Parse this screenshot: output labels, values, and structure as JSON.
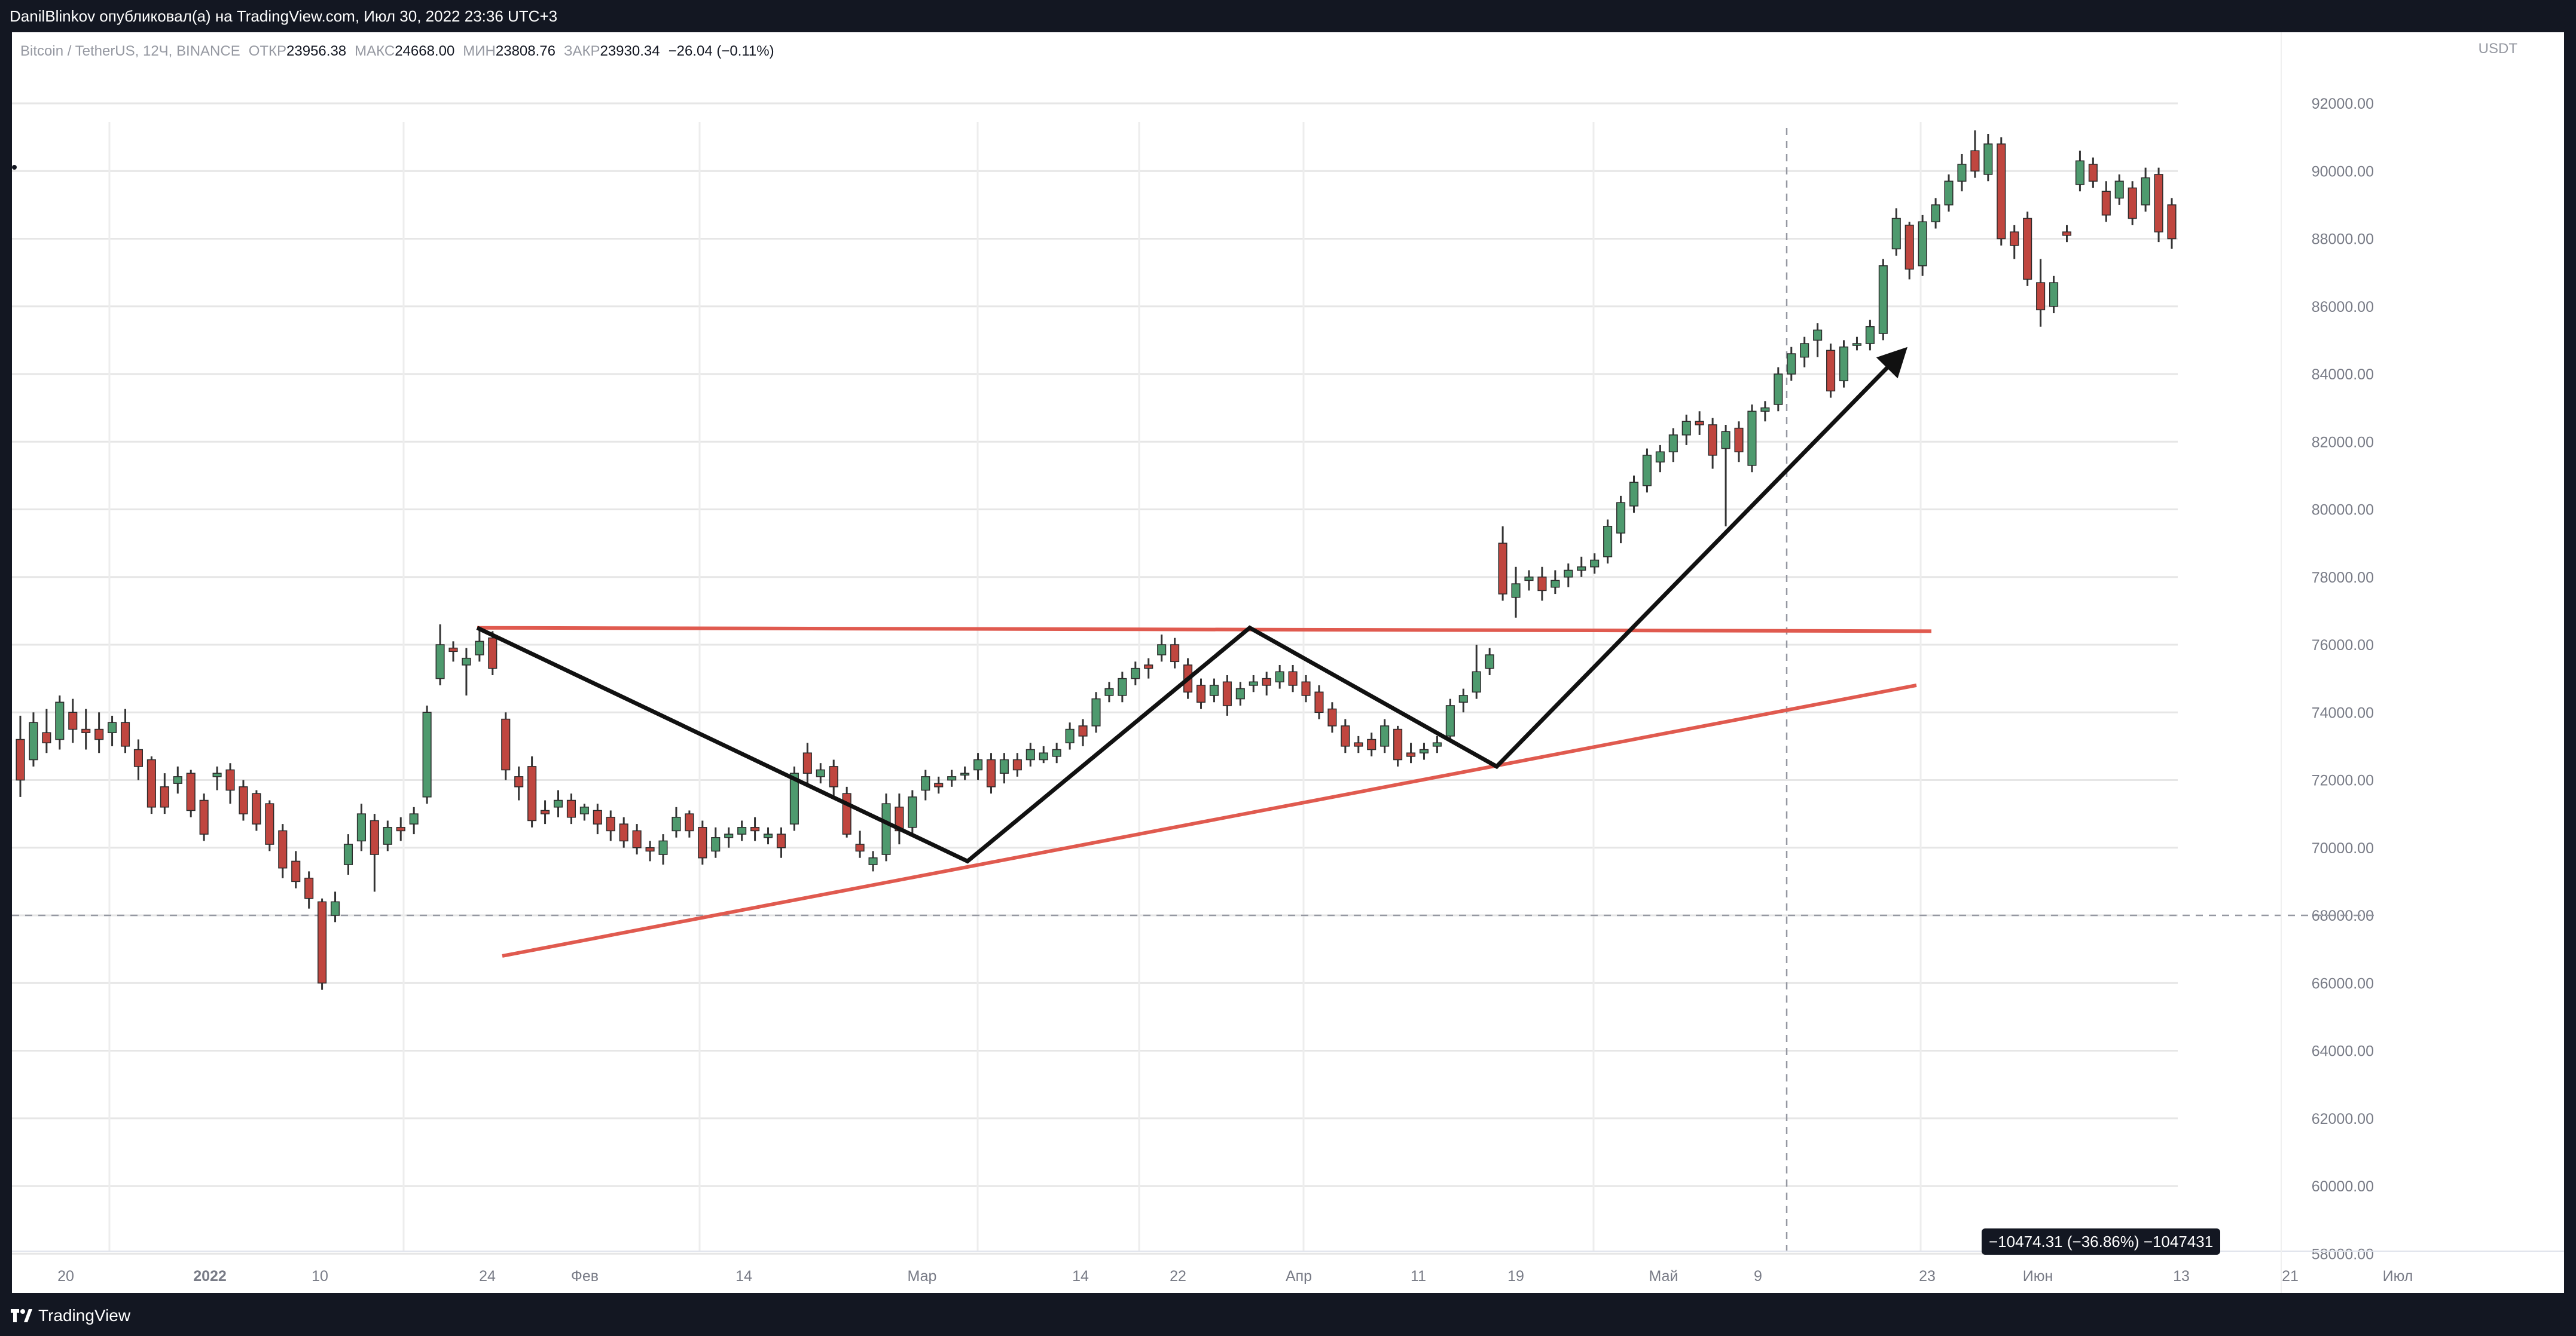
{
  "header": {
    "publish_line": "DanilBlinkov опубликовал(а) на TradingView.com, Июл 30, 2022 23:36 UTC+3"
  },
  "legend": {
    "symbol": "Bitcoin / TetherUS, 12Ч, BINANCE",
    "open_label": "ОТКР",
    "open_value": "23956.38",
    "high_label": "МАКС",
    "high_value": "24668.00",
    "low_label": "МИН",
    "low_value": "23808.76",
    "close_label": "ЗАКР",
    "close_value": "23930.34",
    "change": "−26.04 (−0.11%)"
  },
  "price_scale": {
    "currency": "USDT",
    "ticks": [
      "92000.00",
      "90000.00",
      "88000.00",
      "86000.00",
      "84000.00",
      "82000.00",
      "80000.00",
      "78000.00",
      "76000.00",
      "74000.00",
      "72000.00",
      "70000.00",
      "68000.00",
      "66000.00",
      "64000.00",
      "62000.00",
      "60000.00",
      "58000.00"
    ]
  },
  "time_scale": {
    "ticks": [
      "20",
      "2022",
      "10",
      "24",
      "Фев",
      "14",
      "Мар",
      "14",
      "22",
      "Апр",
      "11",
      "19",
      "Май",
      "9",
      "23",
      "Июн",
      "13",
      "21",
      "Июл"
    ]
  },
  "measure": {
    "label": "−10474.31 (−36.86%) −1047431"
  },
  "footer": {
    "brand": "TradingView"
  },
  "colors": {
    "up": "#26a69a",
    "down": "#ef5350",
    "candle_up_fill": "#4e9a6e",
    "candle_down_fill": "#c0463f",
    "trendline_red": "#e05a4f",
    "zigzag": "#111111",
    "grid": "#e6e6e6",
    "frame": "#131722"
  },
  "chart_data": {
    "type": "candlestick",
    "title": "Bitcoin / TetherUS, 12Ч, BINANCE",
    "ylim": [
      57500,
      93000
    ],
    "ylabel": "USDT",
    "grid": true,
    "candles": [
      [
        73200,
        72000,
        73900,
        71500
      ],
      [
        72600,
        73700,
        74000,
        72400
      ],
      [
        73400,
        73100,
        74100,
        72800
      ],
      [
        73200,
        74300,
        74500,
        72900
      ],
      [
        74000,
        73500,
        74400,
        73100
      ],
      [
        73500,
        73400,
        74100,
        72900
      ],
      [
        73500,
        73200,
        74000,
        72800
      ],
      [
        73400,
        73700,
        73900,
        73000
      ],
      [
        73700,
        73000,
        74100,
        72800
      ],
      [
        72900,
        72400,
        73200,
        72000
      ],
      [
        72600,
        71200,
        72700,
        71000
      ],
      [
        71800,
        71200,
        72200,
        71000
      ],
      [
        71900,
        72100,
        72400,
        71600
      ],
      [
        72200,
        71100,
        72300,
        70900
      ],
      [
        71400,
        70400,
        71600,
        70200
      ],
      [
        72100,
        72200,
        72400,
        71700
      ],
      [
        72300,
        71700,
        72500,
        71300
      ],
      [
        71800,
        71000,
        72000,
        70800
      ],
      [
        71600,
        70700,
        71700,
        70500
      ],
      [
        71300,
        70100,
        71400,
        69900
      ],
      [
        70500,
        69400,
        70700,
        69100
      ],
      [
        69600,
        69000,
        69900,
        68800
      ],
      [
        69100,
        68500,
        69300,
        68200
      ],
      [
        68400,
        66000,
        68500,
        65800
      ],
      [
        68000,
        68400,
        68700,
        67800
      ],
      [
        69500,
        70100,
        70400,
        69200
      ],
      [
        70200,
        71000,
        71300,
        69900
      ],
      [
        70800,
        69800,
        71000,
        68700
      ],
      [
        70100,
        70600,
        70800,
        69900
      ],
      [
        70600,
        70500,
        70900,
        70200
      ],
      [
        70700,
        71000,
        71200,
        70400
      ],
      [
        71500,
        74000,
        74200,
        71300
      ],
      [
        75000,
        76000,
        76600,
        74800
      ],
      [
        75900,
        75800,
        76100,
        75500
      ],
      [
        75400,
        75600,
        75900,
        74500
      ],
      [
        75700,
        76100,
        76500,
        75500
      ],
      [
        76200,
        75300,
        76400,
        75100
      ],
      [
        73800,
        72300,
        74000,
        72000
      ],
      [
        72100,
        71800,
        72400,
        71400
      ],
      [
        72400,
        70800,
        72700,
        70600
      ],
      [
        71100,
        71000,
        71400,
        70700
      ],
      [
        71200,
        71400,
        71700,
        70900
      ],
      [
        71400,
        70900,
        71600,
        70700
      ],
      [
        71000,
        71200,
        71300,
        70800
      ],
      [
        71100,
        70700,
        71300,
        70400
      ],
      [
        70900,
        70500,
        71100,
        70200
      ],
      [
        70700,
        70200,
        70900,
        70000
      ],
      [
        70500,
        70000,
        70700,
        69800
      ],
      [
        70000,
        69900,
        70200,
        69600
      ],
      [
        69800,
        70200,
        70400,
        69500
      ],
      [
        70500,
        70900,
        71200,
        70300
      ],
      [
        71000,
        70500,
        71100,
        70300
      ],
      [
        70600,
        69700,
        70800,
        69500
      ],
      [
        69900,
        70300,
        70600,
        69700
      ],
      [
        70300,
        70400,
        70600,
        70000
      ],
      [
        70400,
        70600,
        70800,
        70200
      ],
      [
        70600,
        70500,
        70900,
        70200
      ],
      [
        70300,
        70400,
        70600,
        70100
      ],
      [
        70400,
        70000,
        70600,
        69700
      ],
      [
        70700,
        72200,
        72400,
        70500
      ],
      [
        72800,
        72200,
        73100,
        71800
      ],
      [
        72100,
        72300,
        72500,
        71900
      ],
      [
        72400,
        71800,
        72600,
        71500
      ],
      [
        71600,
        70400,
        71800,
        70300
      ],
      [
        70100,
        69900,
        70500,
        69700
      ],
      [
        69500,
        69700,
        69900,
        69300
      ],
      [
        69800,
        71300,
        71600,
        69600
      ],
      [
        71200,
        70500,
        71600,
        70100
      ],
      [
        70600,
        71500,
        71700,
        70400
      ],
      [
        71700,
        72100,
        72300,
        71400
      ],
      [
        71900,
        71800,
        72100,
        71600
      ],
      [
        72000,
        72100,
        72300,
        71800
      ],
      [
        72200,
        72200,
        72400,
        72000
      ],
      [
        72300,
        72600,
        72800,
        72000
      ],
      [
        72600,
        71800,
        72800,
        71600
      ],
      [
        72200,
        72600,
        72800,
        71900
      ],
      [
        72600,
        72300,
        72800,
        72100
      ],
      [
        72600,
        72900,
        73100,
        72400
      ],
      [
        72600,
        72800,
        73000,
        72500
      ],
      [
        72700,
        72900,
        73100,
        72500
      ],
      [
        73100,
        73500,
        73700,
        72900
      ],
      [
        73600,
        73300,
        73800,
        73000
      ],
      [
        73600,
        74400,
        74600,
        73400
      ],
      [
        74500,
        74700,
        74900,
        74300
      ],
      [
        74500,
        75000,
        75200,
        74300
      ],
      [
        75000,
        75300,
        75500,
        74800
      ],
      [
        75400,
        75300,
        75600,
        75000
      ],
      [
        75700,
        76000,
        76300,
        75500
      ],
      [
        76000,
        75500,
        76200,
        75300
      ],
      [
        75400,
        74600,
        75600,
        74400
      ],
      [
        74800,
        74300,
        75000,
        74100
      ],
      [
        74500,
        74800,
        75000,
        74300
      ],
      [
        74900,
        74200,
        75100,
        73900
      ],
      [
        74400,
        74700,
        74900,
        74200
      ],
      [
        74800,
        74900,
        75100,
        74600
      ],
      [
        75000,
        74800,
        75200,
        74500
      ],
      [
        74900,
        75200,
        75400,
        74700
      ],
      [
        75200,
        74800,
        75400,
        74600
      ],
      [
        74900,
        74500,
        75100,
        74300
      ],
      [
        74600,
        74000,
        74800,
        73800
      ],
      [
        74100,
        73600,
        74300,
        73400
      ],
      [
        73600,
        73000,
        73800,
        72800
      ],
      [
        73100,
        73000,
        73300,
        72800
      ],
      [
        73200,
        72900,
        73400,
        72700
      ],
      [
        73000,
        73600,
        73800,
        72800
      ],
      [
        73500,
        72600,
        73600,
        72400
      ],
      [
        72800,
        72700,
        73100,
        72500
      ],
      [
        72800,
        72900,
        73100,
        72600
      ],
      [
        73000,
        73100,
        73300,
        72800
      ],
      [
        73300,
        74200,
        74400,
        73200
      ],
      [
        74300,
        74500,
        74700,
        74000
      ],
      [
        74600,
        75200,
        76000,
        74400
      ],
      [
        75300,
        75700,
        75900,
        75100
      ],
      [
        79000,
        77500,
        79500,
        77300
      ],
      [
        77400,
        77800,
        78300,
        76800
      ],
      [
        77900,
        78000,
        78200,
        77600
      ],
      [
        78000,
        77600,
        78300,
        77300
      ],
      [
        77700,
        77900,
        78200,
        77500
      ],
      [
        78000,
        78200,
        78400,
        77700
      ],
      [
        78200,
        78300,
        78600,
        78000
      ],
      [
        78300,
        78500,
        78700,
        78100
      ],
      [
        78600,
        79500,
        79700,
        78400
      ],
      [
        79300,
        80200,
        80400,
        79000
      ],
      [
        80100,
        80800,
        81000,
        79900
      ],
      [
        80700,
        81600,
        81800,
        80500
      ],
      [
        81400,
        81700,
        81900,
        81100
      ],
      [
        81700,
        82200,
        82400,
        81400
      ],
      [
        82200,
        82600,
        82800,
        81900
      ],
      [
        82600,
        82500,
        82900,
        82200
      ],
      [
        82500,
        81600,
        82700,
        81200
      ],
      [
        81800,
        82300,
        82500,
        79500
      ],
      [
        82400,
        81700,
        82600,
        81400
      ],
      [
        81300,
        82900,
        83100,
        81100
      ],
      [
        82900,
        83000,
        83200,
        82600
      ],
      [
        83100,
        84000,
        84200,
        82900
      ],
      [
        84000,
        84600,
        84800,
        83800
      ],
      [
        84500,
        84900,
        85100,
        84200
      ],
      [
        85000,
        85300,
        85500,
        84500
      ],
      [
        84700,
        83500,
        84900,
        83300
      ],
      [
        83800,
        84800,
        85000,
        83600
      ],
      [
        84900,
        84900,
        85100,
        84700
      ],
      [
        84900,
        85400,
        85600,
        84700
      ],
      [
        85200,
        87200,
        87400,
        85000
      ],
      [
        87700,
        88600,
        88900,
        87500
      ],
      [
        88400,
        87100,
        88500,
        86800
      ],
      [
        87200,
        88500,
        88700,
        86900
      ],
      [
        88500,
        89000,
        89200,
        88300
      ],
      [
        89000,
        89700,
        89900,
        88800
      ],
      [
        89700,
        90200,
        90500,
        89400
      ],
      [
        90600,
        90000,
        91200,
        89800
      ],
      [
        89900,
        90800,
        91100,
        89700
      ],
      [
        90800,
        88000,
        91000,
        87800
      ],
      [
        88200,
        87800,
        88400,
        87400
      ],
      [
        88600,
        86800,
        88800,
        86600
      ],
      [
        86700,
        85900,
        87400,
        85400
      ],
      [
        86000,
        86700,
        86900,
        85800
      ],
      [
        88200,
        88100,
        88400,
        87900
      ],
      [
        89600,
        90300,
        90600,
        89400
      ],
      [
        90200,
        89700,
        90400,
        89500
      ],
      [
        89400,
        88700,
        89700,
        88500
      ],
      [
        89200,
        89700,
        89900,
        89000
      ],
      [
        89500,
        88600,
        89700,
        88400
      ],
      [
        89000,
        89800,
        90100,
        88800
      ],
      [
        89900,
        88200,
        90100,
        87900
      ],
      [
        89000,
        88000,
        89200,
        87700
      ]
    ],
    "candles_format": "open, close, high, low",
    "x_ticks": [
      "20",
      "2022",
      "10",
      "24",
      "Фев",
      "14",
      "Мар",
      "14",
      "22",
      "Апр",
      "11",
      "19",
      "Май",
      "9",
      "23",
      "Июн",
      "13",
      "21",
      "Июл"
    ],
    "y_ticks": [
      92000,
      90000,
      88000,
      86000,
      84000,
      82000,
      80000,
      78000,
      76000,
      74000,
      72000,
      70000,
      68000,
      66000,
      64000,
      62000,
      60000,
      58000
    ],
    "annotations": {
      "horizontal_dashed_price": 68000,
      "resistance_line": [
        [
          76500,
          76400
        ]
      ],
      "support_line": [
        [
          66800,
          74800
        ]
      ],
      "zigzag_prices": [
        76500,
        69600,
        76500,
        72400,
        84800
      ]
    }
  }
}
